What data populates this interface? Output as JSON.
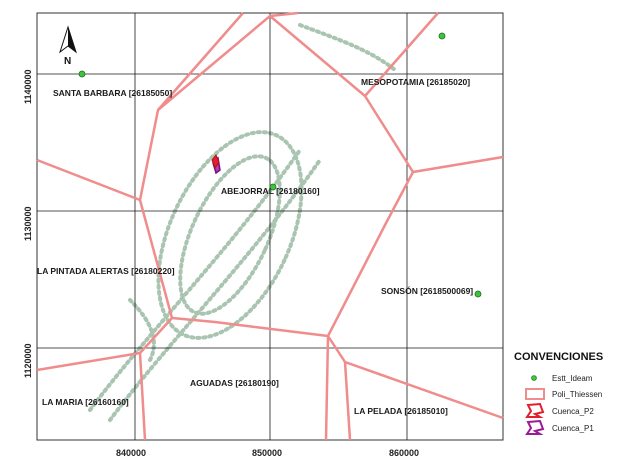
{
  "map": {
    "north_label": "N",
    "x_ticks": [
      "840000",
      "850000",
      "860000"
    ],
    "y_ticks": [
      "1140000",
      "1130000",
      "1120000"
    ],
    "stations": [
      {
        "id": "santa-barbara",
        "label": "SANTA BARBARA [26185050]"
      },
      {
        "id": "mesopotamia",
        "label": "MESOPOTAMIA [26185020]"
      },
      {
        "id": "abejorral",
        "label": "ABEJORRAL [26180160]"
      },
      {
        "id": "la-pintada",
        "label": "LA PINTADA ALERTAS [26180220]"
      },
      {
        "id": "sonson",
        "label": "SONSÓN [2618500069]"
      },
      {
        "id": "aguadas",
        "label": "AGUADAS [26180190]"
      },
      {
        "id": "la-maria",
        "label": "LA MARIA [26160160]"
      },
      {
        "id": "la-pelada",
        "label": "LA PELADA [26185010]"
      }
    ],
    "colors": {
      "thiessen": "#f08c8c",
      "grid": "#1a1a1a",
      "station": "#3cc43c",
      "cuenca_p2": "#e0202a",
      "cuenca_p1": "#9a1a9a",
      "watermark": "#a9c4b0"
    }
  },
  "legend": {
    "title": "CONVENCIONES",
    "items": [
      {
        "symbol": "point-icon",
        "label": "Estt_Ideam"
      },
      {
        "symbol": "polygon-icon",
        "label": "Poli_Thiessen"
      },
      {
        "symbol": "cuenca-p2-icon",
        "label": "Cuenca_P2"
      },
      {
        "symbol": "cuenca-p1-icon",
        "label": "Cuenca_P1"
      }
    ]
  }
}
